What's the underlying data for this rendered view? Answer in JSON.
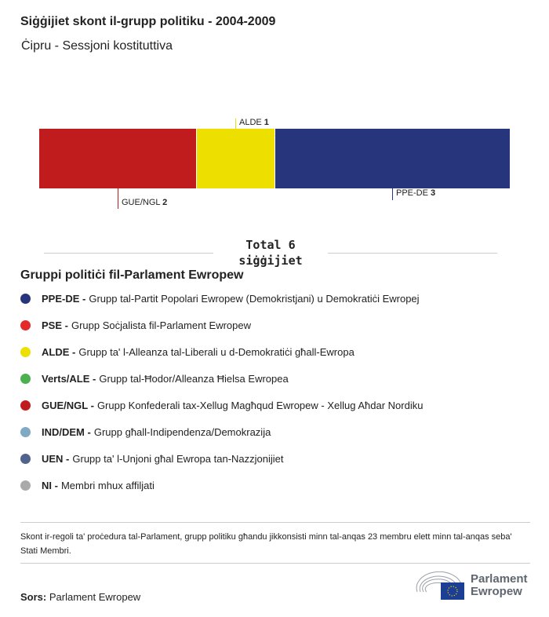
{
  "title": "Siġġijiet skont il-grupp politiku - 2004-2009",
  "subtitle": "Ċipru - Sessjoni kostituttiva",
  "chart_data": {
    "type": "bar",
    "orientation": "stacked-horizontal",
    "title": "Siġġijiet skont il-grupp politiku - 2004-2009",
    "subtitle": "Ċipru - Sessjoni kostituttiva",
    "segments": [
      {
        "name": "GUE/NGL",
        "value": 2,
        "color": "#c01b1d",
        "label_side": "below"
      },
      {
        "name": "ALDE",
        "value": 1,
        "color": "#ede000",
        "label_side": "above"
      },
      {
        "name": "PPE-DE",
        "value": 3,
        "color": "#27357c",
        "label_side": "below"
      }
    ],
    "total_label": "Total 6",
    "total_unit": "siġġijiet"
  },
  "legend": {
    "title": "Gruppi politiċi fil-Parlament Ewropew",
    "items": [
      {
        "abbr": "PPE-DE -",
        "desc": "Grupp tal-Partit Popolari Ewropew (Demokristjani) u Demokratiċi Ewropej",
        "color": "#27357c"
      },
      {
        "abbr": "PSE -",
        "desc": "Grupp Soċjalista fil-Parlament Ewropew",
        "color": "#e52a2a"
      },
      {
        "abbr": "ALDE -",
        "desc": "Grupp ta' l-Alleanza tal-Liberali u d-Demokratiċi għall-Ewropa",
        "color": "#ede000"
      },
      {
        "abbr": "Verts/ALE -",
        "desc": "Grupp tal-Ħodor/Alleanza Ħielsa Ewropea",
        "color": "#4caf50"
      },
      {
        "abbr": "GUE/NGL -",
        "desc": "Grupp Konfederali tax-Xellug Magħqud Ewropew - Xellug Aħdar Nordiku",
        "color": "#c01b1d"
      },
      {
        "abbr": "IND/DEM -",
        "desc": "Grupp għall-Indipendenza/Demokrazija",
        "color": "#80a9c4"
      },
      {
        "abbr": "UEN -",
        "desc": "Grupp ta' l-Unjoni għal Ewropa tan-Nazzjonijiet",
        "color": "#50628d"
      },
      {
        "abbr": "NI -",
        "desc": "Membri mhux affiljati",
        "color": "#aaaaaa"
      }
    ]
  },
  "note": "Skont ir-regoli ta' proċedura tal-Parlament, grupp politiku għandu jikkonsisti minn tal-anqas 23 membru elett minn tal-anqas seba' Stati Membri.",
  "source": {
    "label": "Sors:",
    "value": "Parlament Ewropew"
  },
  "logo": {
    "line1": "Parlament",
    "line2": "Ewropew"
  }
}
